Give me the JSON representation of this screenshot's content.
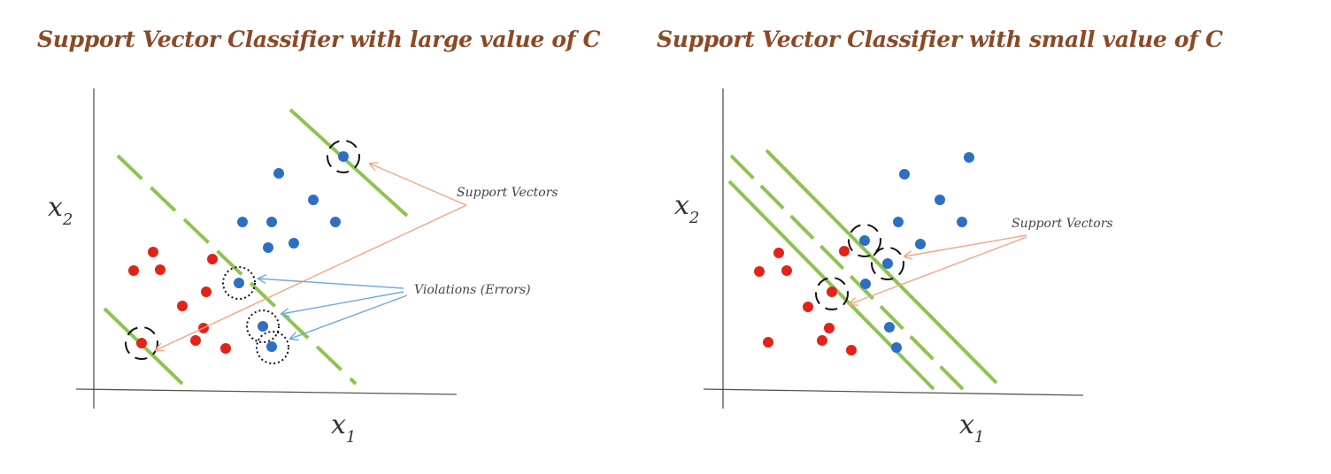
{
  "panels": [
    {
      "title": "Support Vector Classifier with large value of C",
      "axes": {
        "x_label": "x",
        "x_sub": "1",
        "y_label": "x",
        "y_sub": "2"
      },
      "annotations": {
        "support_vectors": "Support Vectors",
        "violations": "Violations (Errors)"
      },
      "colors": {
        "margin_line": "#8dc451",
        "positive_class": "#2e6fc4",
        "negative_class": "#e2231a",
        "support_arrow": "#f4a582",
        "violation_arrow": "#6fa8dc"
      }
    },
    {
      "title": "Support Vector Classifier with small value of C",
      "axes": {
        "x_label": "x",
        "x_sub": "1",
        "y_label": "x",
        "y_sub": "2"
      },
      "annotations": {
        "support_vectors": "Support Vectors"
      },
      "colors": {
        "margin_line": "#8dc451",
        "positive_class": "#2e6fc4",
        "negative_class": "#e2231a",
        "support_arrow": "#f4a582"
      }
    }
  ]
}
